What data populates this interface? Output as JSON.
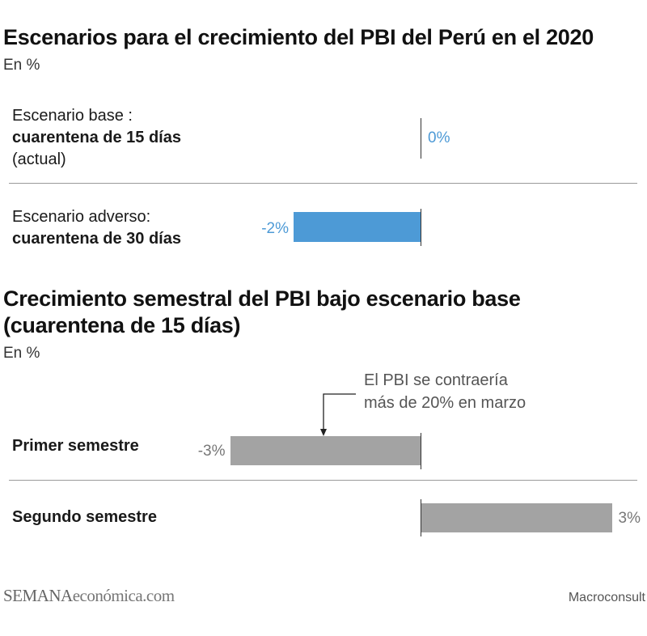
{
  "chart_data": [
    {
      "type": "bar",
      "orientation": "horizontal",
      "title": "Escenarios para el crecimiento del PBI del Perú en el 2020",
      "unit": "En %",
      "color": "#4d9ad6",
      "rows": [
        {
          "line1": "Escenario base :",
          "line2": "cuarentena de 15 días",
          "line3": "(actual)",
          "value": 0,
          "value_label": "0%"
        },
        {
          "line1": "Escenario adverso:",
          "line2": "cuarentena de 30 días",
          "value": -2,
          "value_label": "-2%"
        }
      ]
    },
    {
      "type": "bar",
      "orientation": "horizontal",
      "title_line1": "Crecimiento semestral del PBI bajo escenario base",
      "title_line2": "(cuarentena de 15 días)",
      "unit": "En %",
      "color": "#a3a3a3",
      "annotation_line1": "El PBI se contraería",
      "annotation_line2": "más de 20% en marzo",
      "rows": [
        {
          "label": "Primer semestre",
          "value": -3,
          "value_label": "-3%"
        },
        {
          "label": "Segundo semestre",
          "value": 3,
          "value_label": "3%"
        }
      ]
    }
  ],
  "footer": {
    "brand_part1": "SEMANA",
    "brand_part2": "económica.com",
    "source": "Macroconsult"
  }
}
